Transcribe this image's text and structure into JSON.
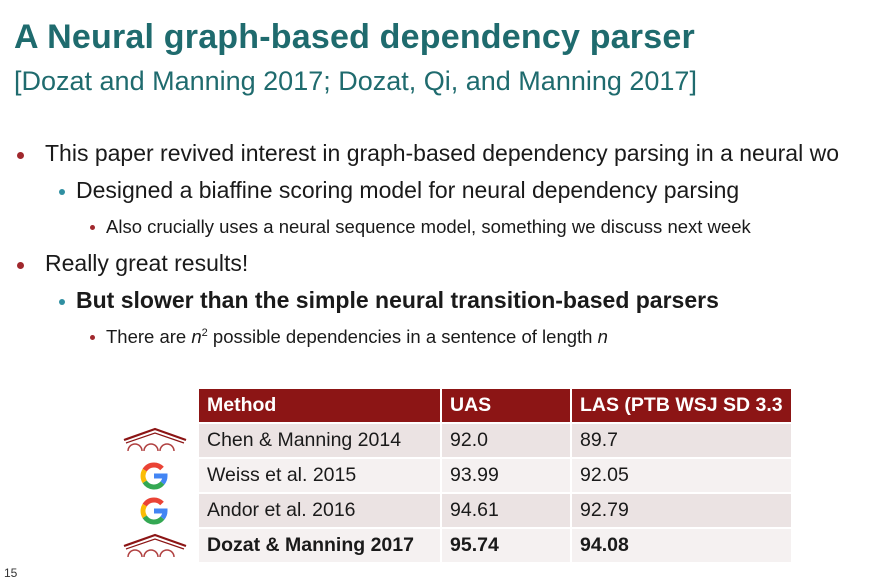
{
  "slide": {
    "title": "A Neural graph-based dependency parser",
    "subtitle": "[Dozat and Manning 2017; Dozat, Qi, and Manning 2017]",
    "page_number": "15"
  },
  "bullets": {
    "b1": "This paper revived interest in graph-based dependency parsing in a neural wo",
    "b1_1": "Designed a biaffine scoring model for neural dependency parsing",
    "b1_1_1": "Also crucially uses a neural sequence model, something we discuss next week",
    "b2": "Really great results!",
    "b2_1": "But slower than the simple neural transition-based parsers",
    "b2_1_1": {
      "pre": "There are ",
      "var1": "n",
      "sup": "2",
      "mid": " possible dependencies in a sentence of length ",
      "var2": "n"
    }
  },
  "table": {
    "headers": [
      "Method",
      "UAS",
      "LAS (PTB WSJ SD 3.3"
    ],
    "rows": [
      {
        "method": "Chen & Manning 2014",
        "uas": "92.0",
        "las": "89.7",
        "logo": "stanford-arch-icon"
      },
      {
        "method": "Weiss et al. 2015",
        "uas": "93.99",
        "las": "92.05",
        "logo": "google-g-icon"
      },
      {
        "method": "Andor et al. 2016",
        "uas": "94.61",
        "las": "92.79",
        "logo": "google-g-icon"
      },
      {
        "method": "Dozat & Manning 2017",
        "uas": "95.74",
        "las": "94.08",
        "logo": "stanford-arch-icon"
      }
    ]
  },
  "colors": {
    "title": "#1f6b6e",
    "bullet_level1": "#a0282d",
    "bullet_level2": "#2f8fa1",
    "table_header": "#8c1515"
  }
}
